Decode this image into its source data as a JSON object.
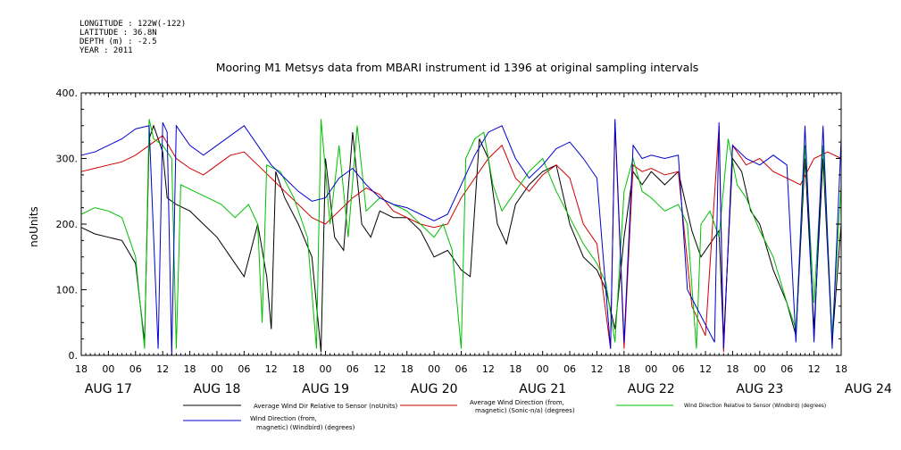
{
  "header": {
    "longitude": "LONGITUDE : 122W(-122)",
    "latitude": "LATITUDE : 36.8N",
    "depth": "DEPTH (m) : -2.5",
    "year": "YEAR : 2011"
  },
  "chart_data": {
    "type": "line",
    "title": "Mooring M1 Metsys data from MBARI instrument id 1396 at original sampling intervals",
    "ylabel": "noUnits",
    "ylim": [
      0,
      400
    ],
    "yticks": [
      0,
      100,
      200,
      300,
      400
    ],
    "ytick_labels": [
      "0.",
      "100.",
      "200.",
      "300.",
      "400."
    ],
    "xlim_hours": [
      -6,
      162
    ],
    "x_hour_ticks": [
      "18",
      "00",
      "06",
      "12",
      "18",
      "00",
      "06",
      "12",
      "18",
      "00",
      "06",
      "12",
      "18",
      "00",
      "06",
      "12",
      "18",
      "00",
      "06",
      "12",
      "18",
      "00",
      "06",
      "12",
      "18",
      "00",
      "06",
      "12",
      "18"
    ],
    "date_labels": [
      "AUG 17",
      "AUG 18",
      "AUG 19",
      "AUG 20",
      "AUG 21",
      "AUG 22",
      "AUG 23",
      "AUG 24"
    ],
    "series": [
      {
        "name": "Average Wind Dir Relative to Sensor (noUnits)",
        "color": "#000000",
        "points": [
          [
            -6,
            195
          ],
          [
            -3,
            185
          ],
          [
            0,
            180
          ],
          [
            3,
            175
          ],
          [
            6,
            140
          ],
          [
            8,
            20
          ],
          [
            9,
            330
          ],
          [
            10,
            350
          ],
          [
            12,
            310
          ],
          [
            13,
            240
          ],
          [
            15,
            230
          ],
          [
            18,
            220
          ],
          [
            21,
            200
          ],
          [
            24,
            180
          ],
          [
            27,
            150
          ],
          [
            30,
            120
          ],
          [
            33,
            200
          ],
          [
            35,
            120
          ],
          [
            36,
            40
          ],
          [
            37,
            280
          ],
          [
            39,
            240
          ],
          [
            42,
            200
          ],
          [
            45,
            150
          ],
          [
            47,
            5
          ],
          [
            48,
            300
          ],
          [
            50,
            180
          ],
          [
            52,
            160
          ],
          [
            54,
            340
          ],
          [
            56,
            200
          ],
          [
            58,
            180
          ],
          [
            60,
            220
          ],
          [
            63,
            210
          ],
          [
            66,
            210
          ],
          [
            69,
            190
          ],
          [
            72,
            150
          ],
          [
            75,
            160
          ],
          [
            78,
            130
          ],
          [
            80,
            120
          ],
          [
            82,
            330
          ],
          [
            84,
            300
          ],
          [
            86,
            200
          ],
          [
            88,
            170
          ],
          [
            90,
            230
          ],
          [
            93,
            260
          ],
          [
            96,
            280
          ],
          [
            99,
            290
          ],
          [
            102,
            200
          ],
          [
            105,
            150
          ],
          [
            108,
            130
          ],
          [
            110,
            100
          ],
          [
            112,
            40
          ],
          [
            114,
            180
          ],
          [
            116,
            280
          ],
          [
            118,
            260
          ],
          [
            120,
            280
          ],
          [
            123,
            260
          ],
          [
            126,
            280
          ],
          [
            129,
            190
          ],
          [
            131,
            150
          ],
          [
            133,
            170
          ],
          [
            135,
            190
          ],
          [
            136,
            20
          ],
          [
            138,
            300
          ],
          [
            140,
            280
          ],
          [
            142,
            220
          ],
          [
            144,
            200
          ],
          [
            147,
            130
          ],
          [
            150,
            80
          ],
          [
            152,
            30
          ],
          [
            154,
            300
          ],
          [
            156,
            40
          ],
          [
            158,
            300
          ],
          [
            160,
            20
          ],
          [
            162,
            200
          ]
        ]
      },
      {
        "name": "Average Wind Direction (from, magnetic) (Sonic-n/a) (degrees)",
        "color": "#d00000",
        "points": [
          [
            -6,
            280
          ],
          [
            -3,
            285
          ],
          [
            0,
            290
          ],
          [
            3,
            295
          ],
          [
            6,
            305
          ],
          [
            9,
            320
          ],
          [
            12,
            335
          ],
          [
            15,
            300
          ],
          [
            18,
            285
          ],
          [
            21,
            275
          ],
          [
            24,
            290
          ],
          [
            27,
            305
          ],
          [
            30,
            310
          ],
          [
            33,
            290
          ],
          [
            36,
            270
          ],
          [
            39,
            250
          ],
          [
            42,
            230
          ],
          [
            45,
            210
          ],
          [
            48,
            200
          ],
          [
            51,
            220
          ],
          [
            54,
            240
          ],
          [
            57,
            255
          ],
          [
            60,
            245
          ],
          [
            63,
            220
          ],
          [
            66,
            210
          ],
          [
            69,
            200
          ],
          [
            72,
            195
          ],
          [
            75,
            200
          ],
          [
            78,
            240
          ],
          [
            81,
            270
          ],
          [
            84,
            300
          ],
          [
            87,
            320
          ],
          [
            90,
            270
          ],
          [
            93,
            250
          ],
          [
            96,
            275
          ],
          [
            99,
            290
          ],
          [
            102,
            270
          ],
          [
            105,
            200
          ],
          [
            108,
            170
          ],
          [
            111,
            10
          ],
          [
            112,
            355
          ],
          [
            114,
            10
          ],
          [
            116,
            290
          ],
          [
            118,
            280
          ],
          [
            120,
            285
          ],
          [
            123,
            275
          ],
          [
            126,
            280
          ],
          [
            129,
            75
          ],
          [
            132,
            30
          ],
          [
            135,
            350
          ],
          [
            136,
            5
          ],
          [
            138,
            320
          ],
          [
            141,
            290
          ],
          [
            144,
            300
          ],
          [
            147,
            280
          ],
          [
            150,
            270
          ],
          [
            153,
            260
          ],
          [
            156,
            300
          ],
          [
            159,
            310
          ],
          [
            162,
            300
          ]
        ]
      },
      {
        "name": "Wind Direction Relative to Sensor (Windbird) (degrees)",
        "color": "#00c000",
        "points": [
          [
            -6,
            215
          ],
          [
            -3,
            225
          ],
          [
            0,
            220
          ],
          [
            3,
            210
          ],
          [
            6,
            150
          ],
          [
            8,
            10
          ],
          [
            9,
            360
          ],
          [
            10,
            330
          ],
          [
            12,
            320
          ],
          [
            14,
            300
          ],
          [
            15,
            10
          ],
          [
            16,
            260
          ],
          [
            19,
            250
          ],
          [
            22,
            240
          ],
          [
            25,
            230
          ],
          [
            28,
            210
          ],
          [
            31,
            230
          ],
          [
            33,
            200
          ],
          [
            34,
            50
          ],
          [
            35,
            290
          ],
          [
            38,
            280
          ],
          [
            41,
            240
          ],
          [
            44,
            180
          ],
          [
            46,
            10
          ],
          [
            47,
            360
          ],
          [
            49,
            200
          ],
          [
            51,
            320
          ],
          [
            53,
            180
          ],
          [
            55,
            350
          ],
          [
            57,
            220
          ],
          [
            60,
            240
          ],
          [
            63,
            230
          ],
          [
            66,
            220
          ],
          [
            69,
            200
          ],
          [
            72,
            180
          ],
          [
            74,
            200
          ],
          [
            76,
            160
          ],
          [
            78,
            10
          ],
          [
            79,
            300
          ],
          [
            81,
            330
          ],
          [
            83,
            340
          ],
          [
            85,
            260
          ],
          [
            87,
            220
          ],
          [
            90,
            250
          ],
          [
            93,
            280
          ],
          [
            96,
            300
          ],
          [
            99,
            250
          ],
          [
            102,
            210
          ],
          [
            105,
            170
          ],
          [
            108,
            140
          ],
          [
            110,
            110
          ],
          [
            112,
            20
          ],
          [
            114,
            250
          ],
          [
            116,
            300
          ],
          [
            118,
            250
          ],
          [
            120,
            240
          ],
          [
            123,
            220
          ],
          [
            126,
            230
          ],
          [
            128,
            200
          ],
          [
            130,
            10
          ],
          [
            131,
            200
          ],
          [
            133,
            220
          ],
          [
            135,
            180
          ],
          [
            137,
            330
          ],
          [
            139,
            260
          ],
          [
            141,
            240
          ],
          [
            144,
            190
          ],
          [
            147,
            150
          ],
          [
            150,
            80
          ],
          [
            152,
            40
          ],
          [
            154,
            320
          ],
          [
            156,
            80
          ],
          [
            158,
            320
          ],
          [
            160,
            30
          ],
          [
            162,
            260
          ]
        ]
      },
      {
        "name": "Wind Direction (from, magnetic) (Windbird) (degrees)",
        "color": "#0000d0",
        "points": [
          [
            -6,
            305
          ],
          [
            -3,
            310
          ],
          [
            0,
            320
          ],
          [
            3,
            330
          ],
          [
            6,
            345
          ],
          [
            9,
            350
          ],
          [
            11,
            10
          ],
          [
            12,
            355
          ],
          [
            13,
            340
          ],
          [
            14,
            0
          ],
          [
            15,
            350
          ],
          [
            18,
            320
          ],
          [
            21,
            305
          ],
          [
            24,
            320
          ],
          [
            27,
            335
          ],
          [
            30,
            350
          ],
          [
            33,
            320
          ],
          [
            36,
            290
          ],
          [
            39,
            270
          ],
          [
            42,
            250
          ],
          [
            45,
            235
          ],
          [
            48,
            240
          ],
          [
            51,
            270
          ],
          [
            54,
            285
          ],
          [
            57,
            260
          ],
          [
            60,
            240
          ],
          [
            63,
            230
          ],
          [
            66,
            225
          ],
          [
            69,
            215
          ],
          [
            72,
            205
          ],
          [
            75,
            215
          ],
          [
            78,
            260
          ],
          [
            81,
            305
          ],
          [
            84,
            340
          ],
          [
            87,
            350
          ],
          [
            90,
            300
          ],
          [
            93,
            270
          ],
          [
            96,
            290
          ],
          [
            99,
            315
          ],
          [
            102,
            325
          ],
          [
            105,
            300
          ],
          [
            108,
            270
          ],
          [
            111,
            10
          ],
          [
            112,
            360
          ],
          [
            114,
            20
          ],
          [
            116,
            320
          ],
          [
            118,
            300
          ],
          [
            120,
            305
          ],
          [
            123,
            300
          ],
          [
            126,
            305
          ],
          [
            128,
            100
          ],
          [
            131,
            60
          ],
          [
            134,
            20
          ],
          [
            135,
            355
          ],
          [
            136,
            10
          ],
          [
            138,
            320
          ],
          [
            141,
            300
          ],
          [
            144,
            290
          ],
          [
            147,
            305
          ],
          [
            150,
            290
          ],
          [
            152,
            20
          ],
          [
            154,
            350
          ],
          [
            156,
            20
          ],
          [
            158,
            350
          ],
          [
            160,
            10
          ],
          [
            162,
            330
          ]
        ]
      }
    ],
    "legend": [
      "Average Wind Dir Relative to Sensor (noUnits)",
      "Average Wind Direction (from,",
      "magnetic) (Sonic-n/a) (degrees)",
      "Wind Direction Relative to Sensor (Windbird) (degrees)",
      "Wind Direction (from,",
      "magnetic) (Windbird) (degrees)"
    ]
  }
}
